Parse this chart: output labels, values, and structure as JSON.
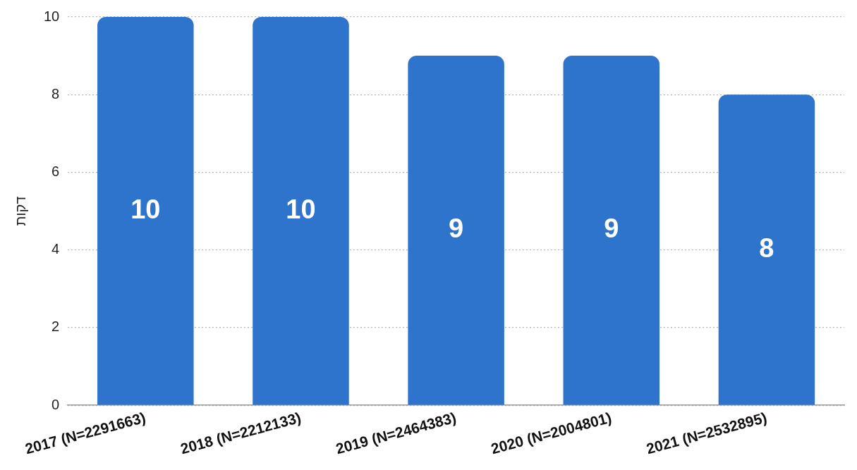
{
  "chart_data": {
    "type": "bar",
    "ylabel": "דקות",
    "categories": [
      "2017 (N=2291663)",
      "2018 (N=2212133)",
      "2019 (N=2464383)",
      "2020 (N=2004801)",
      "2021 (N=2532895)"
    ],
    "values": [
      10,
      10,
      9,
      9,
      8
    ],
    "color": "#2f74cc",
    "ylim": [
      0,
      10
    ],
    "yticks": [
      0,
      2,
      4,
      6,
      8,
      10
    ],
    "grid": "y",
    "data_labels": true,
    "legend": false
  }
}
